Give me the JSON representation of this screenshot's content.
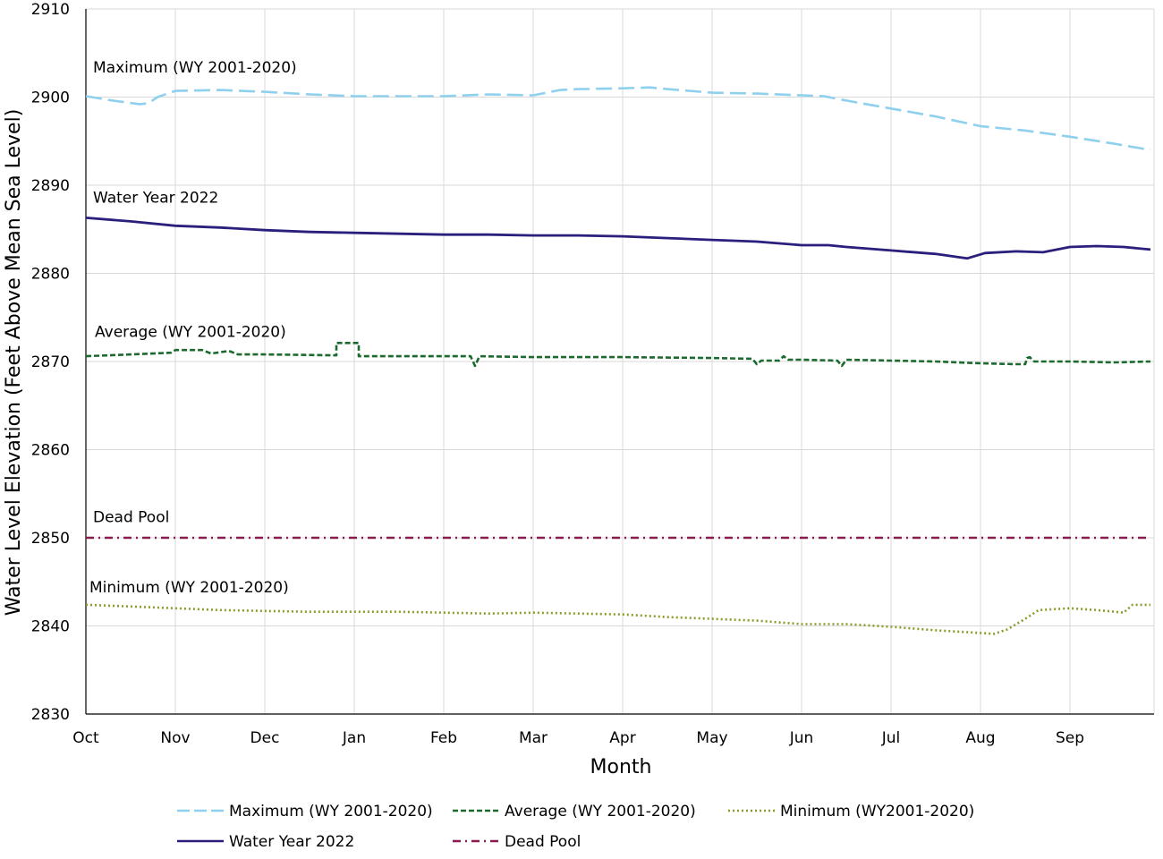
{
  "chart_data": {
    "type": "line",
    "xlabel": "Month",
    "ylabel": "Water Level Elevation (Feet Above Mean Sea Level)",
    "ylim": [
      2830,
      2910
    ],
    "yticks": [
      "2830",
      "2840",
      "2850",
      "2860",
      "2870",
      "2880",
      "2890",
      "2900",
      "2910"
    ],
    "xlim": [
      0,
      11.9
    ],
    "categories": [
      "Oct",
      "Nov",
      "Dec",
      "Jan",
      "Feb",
      "Mar",
      "Apr",
      "May",
      "Jun",
      "Jul",
      "Aug",
      "Sep"
    ],
    "grid": true,
    "legend_position": "bottom",
    "series": [
      {
        "name": "Maximum (WY 2001-2020)",
        "label": "Maximum (WY 2001-2020)",
        "color": "#8fd0ee",
        "dash": "dashed",
        "x": [
          0,
          0.3,
          0.6,
          0.7,
          0.8,
          1.0,
          1.5,
          2.0,
          2.5,
          3.0,
          3.5,
          4.0,
          4.5,
          5.0,
          5.3,
          5.5,
          6.0,
          6.3,
          6.5,
          7.0,
          7.5,
          8.0,
          8.25,
          8.5,
          9.0,
          9.5,
          10.0,
          10.5,
          11.0,
          11.5,
          11.9
        ],
        "y": [
          2900.1,
          2899.6,
          2899.2,
          2899.3,
          2900.0,
          2900.7,
          2900.8,
          2900.6,
          2900.3,
          2900.1,
          2900.1,
          2900.1,
          2900.3,
          2900.2,
          2900.8,
          2900.9,
          2901.0,
          2901.1,
          2900.9,
          2900.5,
          2900.4,
          2900.2,
          2900.1,
          2899.6,
          2898.7,
          2897.8,
          2896.7,
          2896.2,
          2895.5,
          2894.7,
          2894.0
        ]
      },
      {
        "name": "Water Year 2022",
        "label": "Water Year 2022",
        "color": "#2b1f7d",
        "dash": "solid",
        "x": [
          0,
          0.5,
          1.0,
          1.5,
          2.0,
          2.5,
          3.0,
          3.5,
          4.0,
          4.5,
          5.0,
          5.5,
          6.0,
          6.5,
          7.0,
          7.5,
          8.0,
          8.3,
          8.5,
          9.0,
          9.5,
          9.85,
          10.05,
          10.4,
          10.7,
          11.0,
          11.3,
          11.6,
          11.9
        ],
        "y": [
          2886.3,
          2885.9,
          2885.4,
          2885.2,
          2884.9,
          2884.7,
          2884.6,
          2884.5,
          2884.4,
          2884.4,
          2884.3,
          2884.3,
          2884.2,
          2884.0,
          2883.8,
          2883.6,
          2883.2,
          2883.2,
          2883.0,
          2882.6,
          2882.2,
          2881.7,
          2882.3,
          2882.5,
          2882.4,
          2883.0,
          2883.1,
          2883.0,
          2882.7
        ]
      },
      {
        "name": "Average (WY 2001-2020)",
        "label": "Average (WY 2001-2020)",
        "color": "#1b6b2e",
        "dash": "dashed",
        "x": [
          0,
          0.5,
          0.95,
          1.0,
          1.3,
          1.4,
          1.6,
          1.7,
          2.0,
          2.8,
          2.8,
          3.05,
          3.05,
          3.5,
          4.0,
          4.3,
          4.35,
          4.4,
          5.0,
          6.0,
          7.0,
          7.45,
          7.5,
          7.55,
          7.75,
          7.8,
          7.85,
          8.0,
          8.4,
          8.45,
          8.5,
          9.0,
          9.5,
          10.0,
          10.4,
          10.5,
          10.52,
          10.55,
          10.6,
          11.0,
          11.5,
          11.9
        ],
        "y": [
          2870.6,
          2870.8,
          2871.0,
          2871.3,
          2871.3,
          2870.9,
          2871.2,
          2870.8,
          2870.8,
          2870.7,
          2872.1,
          2872.1,
          2870.6,
          2870.6,
          2870.6,
          2870.6,
          2869.5,
          2870.6,
          2870.5,
          2870.5,
          2870.4,
          2870.3,
          2869.7,
          2870.1,
          2870.1,
          2870.6,
          2870.2,
          2870.2,
          2870.1,
          2869.5,
          2870.2,
          2870.1,
          2870.0,
          2869.8,
          2869.7,
          2869.7,
          2870.4,
          2870.5,
          2870.0,
          2870.0,
          2869.9,
          2870.0
        ]
      },
      {
        "name": "Dead Pool",
        "label": "Dead Pool",
        "color": "#8b1a4f",
        "dash": "dashdot",
        "x": [
          0,
          11.9
        ],
        "y": [
          2850,
          2850
        ]
      },
      {
        "name": "Minimum (WY2001-2020)",
        "label": "Minimum (WY 2001-2020)",
        "color": "#8f9a2a",
        "dash": "dotted",
        "x": [
          0,
          0.5,
          1.0,
          1.5,
          2.0,
          2.5,
          3.0,
          3.5,
          4.0,
          4.5,
          5.0,
          5.5,
          6.0,
          6.5,
          7.0,
          7.5,
          8.0,
          8.5,
          9.0,
          9.5,
          10.0,
          10.15,
          10.3,
          10.5,
          10.65,
          11.0,
          11.3,
          11.5,
          11.6,
          11.7,
          11.9
        ],
        "y": [
          2842.4,
          2842.2,
          2842.0,
          2841.8,
          2841.7,
          2841.6,
          2841.6,
          2841.6,
          2841.5,
          2841.4,
          2841.5,
          2841.4,
          2841.3,
          2841.0,
          2840.8,
          2840.6,
          2840.2,
          2840.2,
          2839.9,
          2839.5,
          2839.2,
          2839.1,
          2839.6,
          2840.8,
          2841.8,
          2842.0,
          2841.8,
          2841.6,
          2841.5,
          2842.4,
          2842.4
        ]
      }
    ]
  }
}
